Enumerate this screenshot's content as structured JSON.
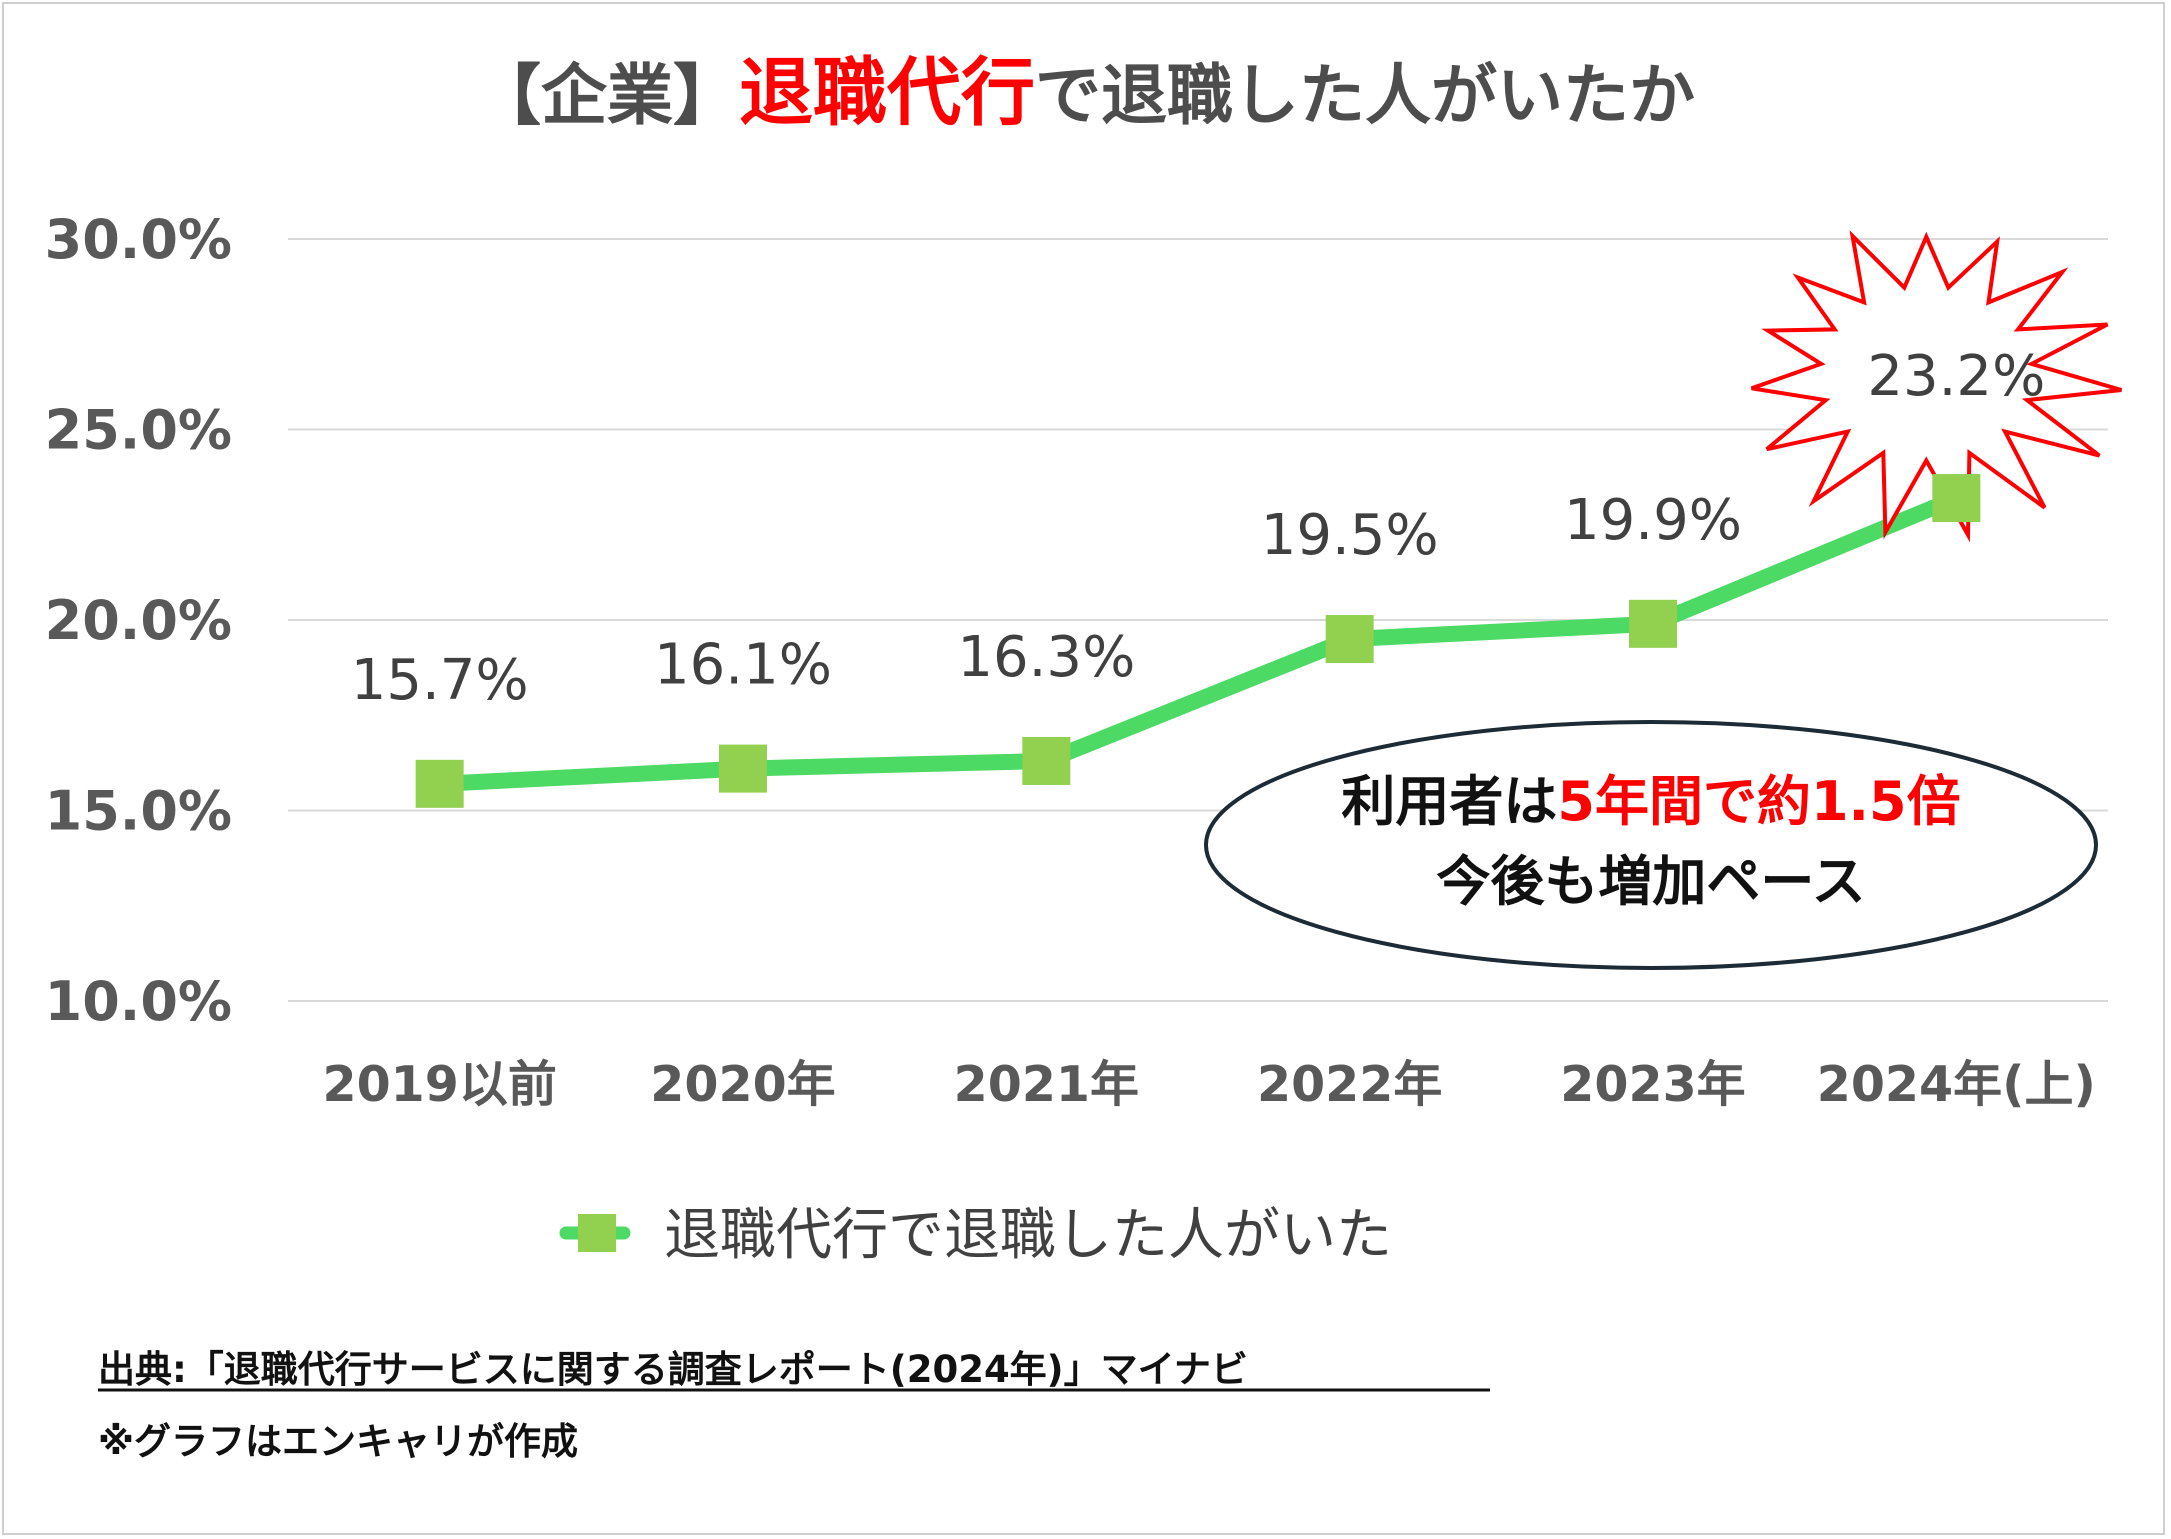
{
  "title": {
    "prefix": "【企業】",
    "highlight": "退職代行",
    "suffix": "で退職した人がいたか"
  },
  "colors": {
    "line": "#4cd964",
    "marker": "#92d050",
    "highlight": "#ff0000",
    "grid": "#d9d9d9",
    "text": "#595959"
  },
  "chart_data": {
    "type": "line",
    "categories": [
      "2019以前",
      "2020年",
      "2021年",
      "2022年",
      "2023年",
      "2024年(上)"
    ],
    "series": [
      {
        "name": "退職代行で退職した人がいた",
        "values": [
          15.7,
          16.1,
          16.3,
          19.5,
          19.9,
          23.2
        ]
      }
    ],
    "data_labels": [
      "15.7%",
      "16.1%",
      "16.3%",
      "19.5%",
      "19.9%",
      "23.2%"
    ],
    "ylim": [
      10,
      30
    ],
    "yticks": [
      10,
      15,
      20,
      25,
      30
    ],
    "ytick_labels": [
      "10.0%",
      "15.0%",
      "20.0%",
      "25.0%",
      "30.0%"
    ],
    "grid": true,
    "legend_position": "bottom",
    "starburst_highlight_index": 5
  },
  "callout": {
    "line1_a": "利用者は",
    "line1_b": "5年間で約1.5倍",
    "line2": "今後も増加ペース"
  },
  "footer": {
    "source": "出典:「退職代行サービスに関する調査レポート(2024年)」マイナビ",
    "note": "※グラフはエンキャリが作成"
  }
}
